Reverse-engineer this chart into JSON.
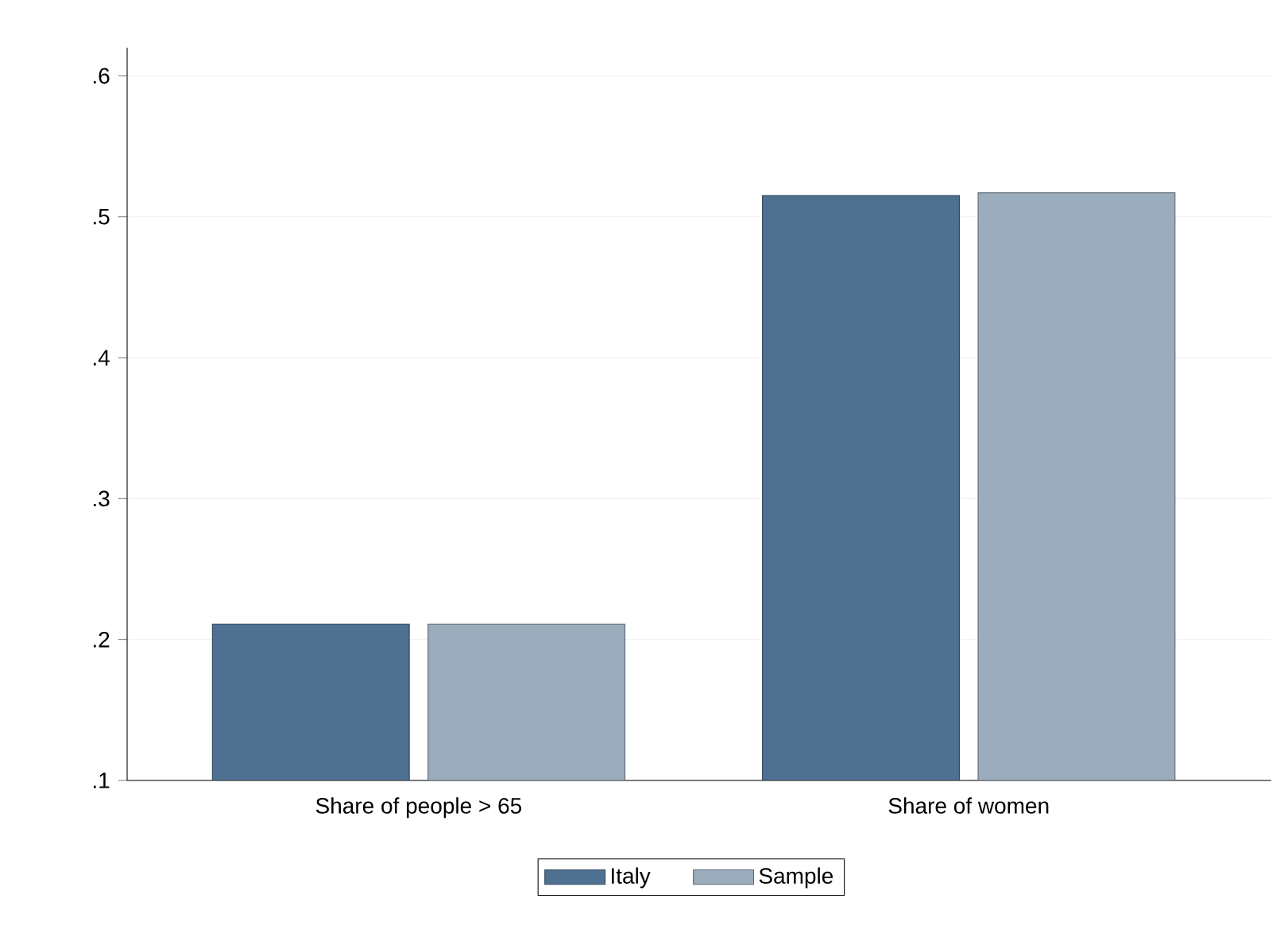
{
  "chart_data": {
    "type": "bar",
    "categories": [
      "Share of people > 65",
      "Share of women"
    ],
    "series": [
      {
        "name": "Italy",
        "color": "#4f7191",
        "values": [
          0.211,
          0.515
        ]
      },
      {
        "name": "Sample",
        "color": "#9bacbd",
        "values": [
          0.211,
          0.517
        ]
      }
    ],
    "ylim": [
      0.1,
      0.62
    ],
    "yticks": [
      {
        "value": 0.1,
        "label": ".1"
      },
      {
        "value": 0.2,
        "label": ".2"
      },
      {
        "value": 0.3,
        "label": ".3"
      },
      {
        "value": 0.4,
        "label": ".4"
      },
      {
        "value": 0.5,
        "label": ".5"
      },
      {
        "value": 0.6,
        "label": ".6"
      }
    ],
    "grid": "y",
    "legend": "bottom"
  }
}
